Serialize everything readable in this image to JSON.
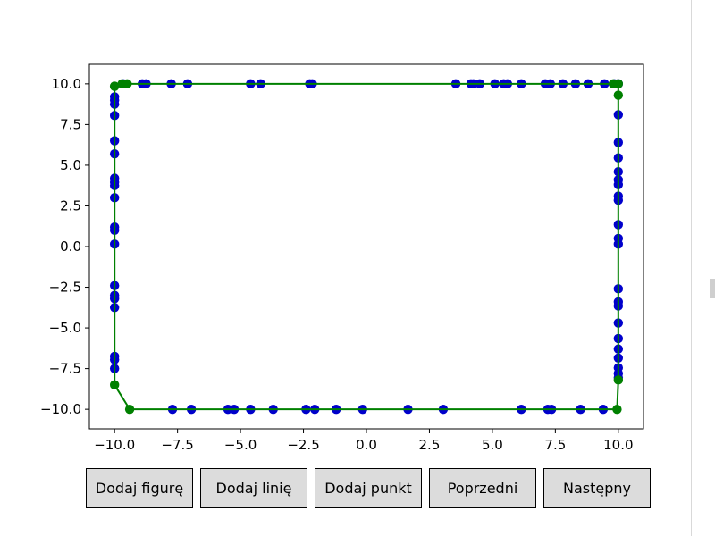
{
  "chart_data": {
    "type": "scatter",
    "title": "",
    "xlabel": "",
    "ylabel": "",
    "xlim": [
      -11,
      11
    ],
    "ylim": [
      -11.2,
      11.2
    ],
    "xticks": [
      -10,
      -7.5,
      -5,
      -2.5,
      0,
      2.5,
      5,
      7.5,
      10
    ],
    "xtick_labels": [
      "−10.0",
      "−7.5",
      "−5.0",
      "−2.5",
      "0.0",
      "2.5",
      "5.0",
      "7.5",
      "10.0"
    ],
    "yticks": [
      10,
      7.5,
      5,
      2.5,
      0,
      -2.5,
      -5,
      -7.5,
      -10
    ],
    "ytick_labels": [
      "10.0",
      "7.5",
      "5.0",
      "2.5",
      "0.0",
      "−2.5",
      "−5.0",
      "−7.5",
      "−10.0"
    ],
    "grid": false,
    "points_color": "#0000cc",
    "outline_color": "#008000",
    "points": [
      [
        -9.65,
        10
      ],
      [
        -8.9,
        10
      ],
      [
        -8.75,
        10
      ],
      [
        -7.75,
        10
      ],
      [
        -7.1,
        10
      ],
      [
        -4.6,
        10
      ],
      [
        -4.2,
        10
      ],
      [
        -2.25,
        10
      ],
      [
        -2.15,
        10
      ],
      [
        3.55,
        10
      ],
      [
        4.15,
        10
      ],
      [
        4.25,
        10
      ],
      [
        4.5,
        10
      ],
      [
        5.1,
        10
      ],
      [
        5.45,
        10
      ],
      [
        5.6,
        10
      ],
      [
        6.15,
        10
      ],
      [
        7.1,
        10
      ],
      [
        7.3,
        10
      ],
      [
        7.8,
        10
      ],
      [
        8.3,
        10
      ],
      [
        8.8,
        10
      ],
      [
        9.45,
        10
      ],
      [
        9.85,
        10
      ],
      [
        10,
        10
      ],
      [
        -10,
        9.2
      ],
      [
        -10,
        9.0
      ],
      [
        -10,
        8.75
      ],
      [
        -10,
        8.05
      ],
      [
        -10,
        6.5
      ],
      [
        -10,
        5.7
      ],
      [
        -10,
        4.2
      ],
      [
        -10,
        3.95
      ],
      [
        -10,
        3.75
      ],
      [
        -10,
        3.0
      ],
      [
        -10,
        1.2
      ],
      [
        -10,
        1.0
      ],
      [
        -10,
        0.15
      ],
      [
        -10,
        -2.4
      ],
      [
        -10,
        -3.0
      ],
      [
        -10,
        -3.2
      ],
      [
        -10,
        -3.75
      ],
      [
        -10,
        -6.75
      ],
      [
        -10,
        -6.95
      ],
      [
        -10,
        -7.5
      ],
      [
        10,
        8.1
      ],
      [
        10,
        6.4
      ],
      [
        10,
        5.45
      ],
      [
        10,
        4.6
      ],
      [
        10,
        4.1
      ],
      [
        10,
        3.8
      ],
      [
        10,
        3.1
      ],
      [
        10,
        2.85
      ],
      [
        10,
        1.35
      ],
      [
        10,
        0.5
      ],
      [
        10,
        0.15
      ],
      [
        10,
        -2.6
      ],
      [
        10,
        -3.4
      ],
      [
        10,
        -3.65
      ],
      [
        10,
        -4.7
      ],
      [
        10,
        -5.65
      ],
      [
        10,
        -6.3
      ],
      [
        10,
        -6.85
      ],
      [
        10,
        -7.45
      ],
      [
        10,
        -7.8
      ],
      [
        10,
        -8.05
      ],
      [
        -7.7,
        -10
      ],
      [
        -6.95,
        -10
      ],
      [
        -5.5,
        -10
      ],
      [
        -5.25,
        -10
      ],
      [
        -4.6,
        -10
      ],
      [
        -3.7,
        -10
      ],
      [
        -2.4,
        -10
      ],
      [
        -2.05,
        -10
      ],
      [
        -1.2,
        -10
      ],
      [
        -0.15,
        -10
      ],
      [
        1.65,
        -10
      ],
      [
        3.05,
        -10
      ],
      [
        6.15,
        -10
      ],
      [
        7.2,
        -10
      ],
      [
        7.35,
        -10
      ],
      [
        8.5,
        -10
      ],
      [
        9.4,
        -10
      ]
    ],
    "outline": [
      [
        -10,
        9.85
      ],
      [
        -9.7,
        10
      ],
      [
        -9.5,
        10
      ],
      [
        9.8,
        10
      ],
      [
        10,
        10
      ],
      [
        10,
        9.3
      ],
      [
        10,
        -8.2
      ],
      [
        9.95,
        -10
      ],
      [
        -9.4,
        -10
      ],
      [
        -10,
        -8.5
      ],
      [
        -10,
        9.85
      ]
    ]
  },
  "buttons": {
    "add_figure": "Dodaj figurę",
    "add_line": "Dodaj linię",
    "add_point": "Dodaj punkt",
    "previous": "Poprzedni",
    "next": "Następny"
  }
}
